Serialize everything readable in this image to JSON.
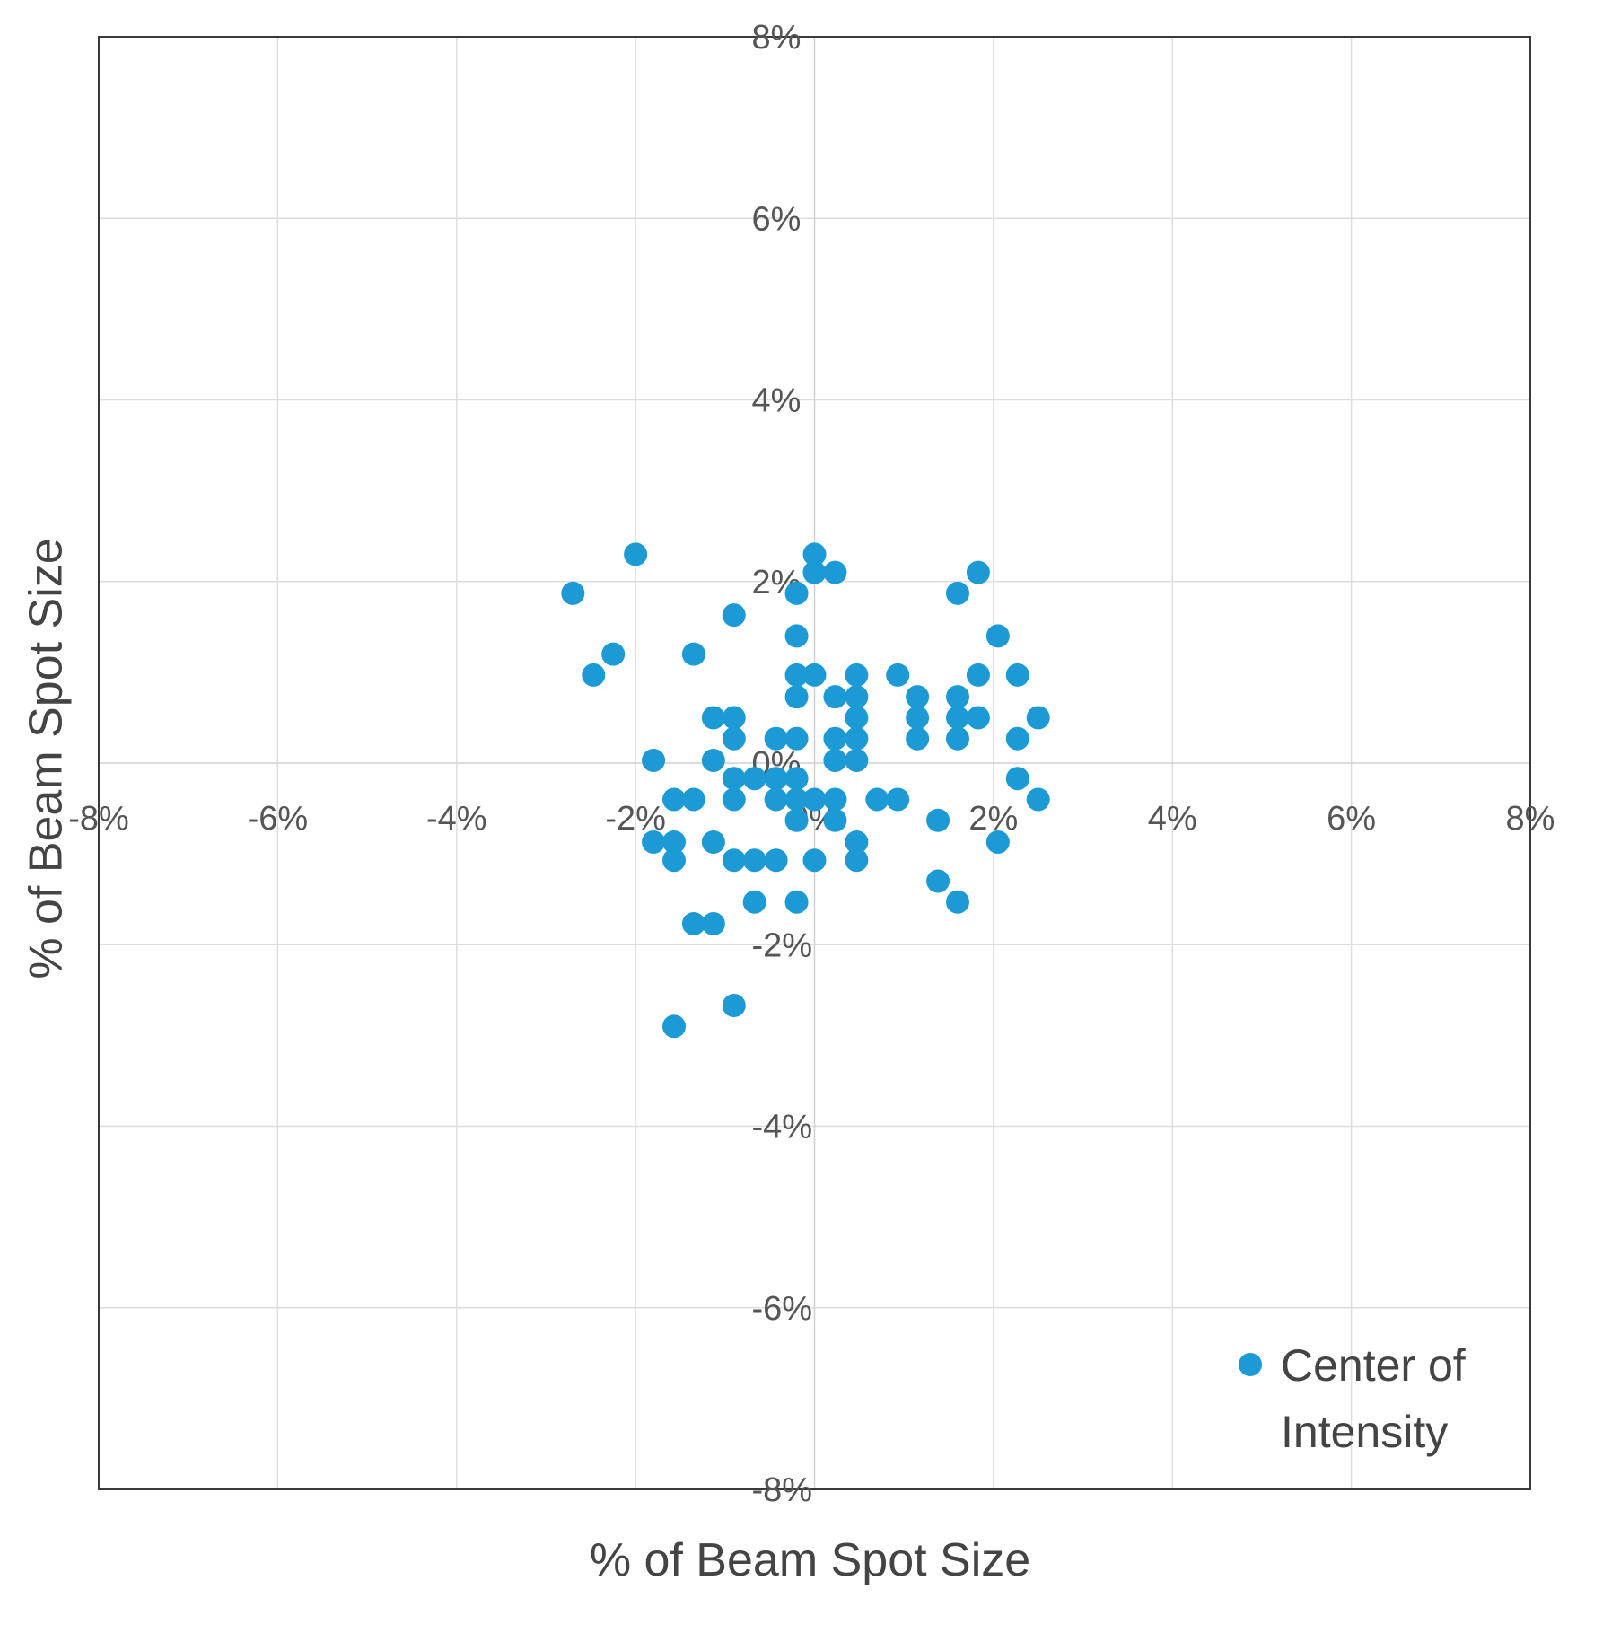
{
  "chart_data": {
    "type": "scatter",
    "title": "",
    "xlabel": "% of Beam Spot Size",
    "ylabel": "% of Beam Spot Size",
    "xlim": [
      -8,
      8
    ],
    "ylim": [
      -8,
      8
    ],
    "x_ticks": [
      -8,
      -6,
      -4,
      -2,
      0,
      2,
      4,
      6,
      8
    ],
    "y_ticks": [
      -8,
      -6,
      -4,
      -2,
      0,
      2,
      4,
      6,
      8
    ],
    "tick_suffix": "%",
    "grid": true,
    "legend": {
      "position": "bottom-right",
      "lines": [
        "Center of",
        "Intensity"
      ]
    },
    "series": [
      {
        "name": "Center of Intensity",
        "color": "#1b9ad6",
        "points": [
          [
            -2.0,
            2.3
          ],
          [
            0.0,
            2.3
          ],
          [
            0.0,
            2.1
          ],
          [
            0.23,
            2.1
          ],
          [
            1.83,
            2.1
          ],
          [
            -2.7,
            1.87
          ],
          [
            -0.2,
            1.87
          ],
          [
            1.6,
            1.87
          ],
          [
            -0.9,
            1.63
          ],
          [
            -0.2,
            1.4
          ],
          [
            2.05,
            1.4
          ],
          [
            -2.25,
            1.2
          ],
          [
            -1.35,
            1.2
          ],
          [
            -2.47,
            0.97
          ],
          [
            -0.2,
            0.97
          ],
          [
            0.0,
            0.97
          ],
          [
            0.47,
            0.97
          ],
          [
            0.93,
            0.97
          ],
          [
            1.83,
            0.97
          ],
          [
            2.27,
            0.97
          ],
          [
            -0.2,
            0.73
          ],
          [
            0.23,
            0.73
          ],
          [
            0.47,
            0.73
          ],
          [
            1.15,
            0.73
          ],
          [
            1.6,
            0.73
          ],
          [
            -1.13,
            0.5
          ],
          [
            -0.9,
            0.5
          ],
          [
            0.47,
            0.5
          ],
          [
            1.15,
            0.5
          ],
          [
            1.6,
            0.5
          ],
          [
            1.83,
            0.5
          ],
          [
            2.5,
            0.5
          ],
          [
            -0.9,
            0.27
          ],
          [
            -0.43,
            0.27
          ],
          [
            -0.2,
            0.27
          ],
          [
            0.23,
            0.27
          ],
          [
            0.47,
            0.27
          ],
          [
            1.15,
            0.27
          ],
          [
            1.6,
            0.27
          ],
          [
            2.27,
            0.27
          ],
          [
            -1.8,
            0.03
          ],
          [
            -1.13,
            0.03
          ],
          [
            0.23,
            0.03
          ],
          [
            0.47,
            0.03
          ],
          [
            -0.9,
            -0.17
          ],
          [
            -0.67,
            -0.17
          ],
          [
            -0.43,
            -0.17
          ],
          [
            -0.2,
            -0.17
          ],
          [
            2.27,
            -0.17
          ],
          [
            -1.57,
            -0.4
          ],
          [
            -1.35,
            -0.4
          ],
          [
            -0.9,
            -0.4
          ],
          [
            -0.43,
            -0.4
          ],
          [
            -0.2,
            -0.4
          ],
          [
            0.0,
            -0.4
          ],
          [
            0.23,
            -0.4
          ],
          [
            0.7,
            -0.4
          ],
          [
            0.93,
            -0.4
          ],
          [
            2.5,
            -0.4
          ],
          [
            -0.2,
            -0.63
          ],
          [
            0.23,
            -0.63
          ],
          [
            1.38,
            -0.63
          ],
          [
            -1.8,
            -0.87
          ],
          [
            -1.57,
            -0.87
          ],
          [
            -1.13,
            -0.87
          ],
          [
            0.47,
            -0.87
          ],
          [
            2.05,
            -0.87
          ],
          [
            -1.57,
            -1.07
          ],
          [
            -0.9,
            -1.07
          ],
          [
            -0.67,
            -1.07
          ],
          [
            -0.43,
            -1.07
          ],
          [
            0.0,
            -1.07
          ],
          [
            0.47,
            -1.07
          ],
          [
            1.38,
            -1.3
          ],
          [
            -0.67,
            -1.53
          ],
          [
            -0.2,
            -1.53
          ],
          [
            1.6,
            -1.53
          ],
          [
            -1.35,
            -1.77
          ],
          [
            -1.13,
            -1.77
          ],
          [
            -0.9,
            -2.67
          ],
          [
            -1.57,
            -2.9
          ]
        ]
      }
    ]
  }
}
